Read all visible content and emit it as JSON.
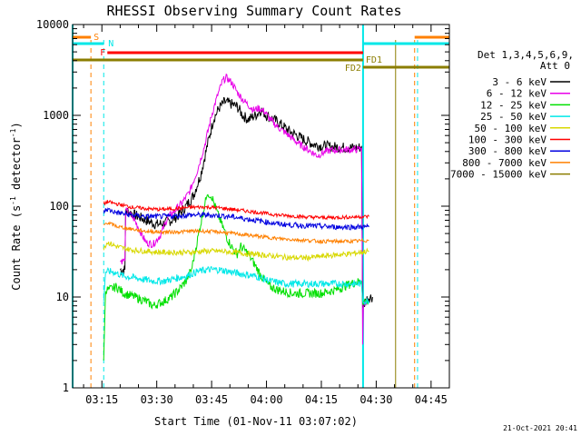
{
  "chart_data": {
    "type": "line",
    "title": "RHESSI Observing Summary Count Rates",
    "xlabel": "Start Time (01-Nov-11 03:07:02)",
    "ylabel_main": "Count Rate (s",
    "ylabel_sup": "-1",
    "ylabel_mid": " detector",
    "ylabel_tail": ")",
    "y_scale": "log",
    "ylim": [
      1,
      10000
    ],
    "x_unit": "minutes since 03:07:02",
    "xlim": [
      0,
      103
    ],
    "grid": false,
    "legend_position": "right",
    "legend_title": "Det 1,3,4,5,6,9,",
    "legend_subtitle": "Att 0",
    "x_ticks": [
      {
        "label": "03:15",
        "t": 8
      },
      {
        "label": "03:30",
        "t": 23
      },
      {
        "label": "03:45",
        "t": 38
      },
      {
        "label": "04:00",
        "t": 53
      },
      {
        "label": "04:15",
        "t": 68
      },
      {
        "label": "04:30",
        "t": 83
      },
      {
        "label": "04:45",
        "t": 98
      }
    ],
    "y_ticks": [
      {
        "label": "1",
        "v": 1
      },
      {
        "label": "10",
        "v": 10
      },
      {
        "label": "100",
        "v": 100
      },
      {
        "label": "1000",
        "v": 1000
      },
      {
        "label": "10000",
        "v": 10000
      }
    ],
    "series": [
      {
        "name": "3 - 6 keV",
        "color": "#000000",
        "noise": 0.06,
        "points": [
          [
            13,
            20
          ],
          [
            14.3,
            20
          ],
          [
            14.5,
            90
          ],
          [
            17,
            80
          ],
          [
            20,
            70
          ],
          [
            23,
            63
          ],
          [
            25,
            65
          ],
          [
            27,
            70
          ],
          [
            29,
            80
          ],
          [
            31,
            100
          ],
          [
            33,
            130
          ],
          [
            35,
            220
          ],
          [
            37,
            500
          ],
          [
            38.5,
            900
          ],
          [
            40,
            1200
          ],
          [
            41.5,
            1400
          ],
          [
            43,
            1350
          ],
          [
            45,
            1250
          ],
          [
            46.5,
            1000
          ],
          [
            48,
            900
          ],
          [
            50,
            1000
          ],
          [
            51.5,
            1150
          ],
          [
            53,
            1000
          ],
          [
            56,
            850
          ],
          [
            59,
            680
          ],
          [
            62,
            580
          ],
          [
            64,
            520
          ],
          [
            66,
            480
          ],
          [
            68,
            460
          ],
          [
            71,
            450
          ],
          [
            75,
            440
          ],
          [
            78,
            440
          ],
          [
            79,
            450
          ],
          [
            79.3,
            7
          ],
          [
            80,
            9
          ],
          [
            81,
            10
          ],
          [
            82,
            10
          ]
        ]
      },
      {
        "name": "6 - 12 keV",
        "color": "#e800e8",
        "noise": 0.04,
        "points": [
          [
            13,
            25
          ],
          [
            14.3,
            25
          ],
          [
            14.5,
            90
          ],
          [
            16.5,
            75
          ],
          [
            18,
            58
          ],
          [
            20,
            40
          ],
          [
            22,
            38
          ],
          [
            24,
            48
          ],
          [
            26,
            75
          ],
          [
            28,
            90
          ],
          [
            30,
            110
          ],
          [
            32,
            145
          ],
          [
            34,
            240
          ],
          [
            36,
            450
          ],
          [
            38,
            1000
          ],
          [
            39.5,
            1600
          ],
          [
            41,
            2400
          ],
          [
            42,
            2600
          ],
          [
            43.5,
            2300
          ],
          [
            45,
            1800
          ],
          [
            46.5,
            1500
          ],
          [
            48,
            1300
          ],
          [
            49.5,
            1150
          ],
          [
            51,
            1200
          ],
          [
            52.5,
            1100
          ],
          [
            54,
            900
          ],
          [
            56,
            750
          ],
          [
            58,
            650
          ],
          [
            60,
            560
          ],
          [
            62,
            480
          ],
          [
            64,
            430
          ],
          [
            66,
            380
          ],
          [
            67,
            360
          ],
          [
            68,
            380
          ],
          [
            70,
            410
          ],
          [
            74,
            420
          ],
          [
            78,
            420
          ],
          [
            79,
            440
          ],
          [
            79.3,
            3
          ],
          [
            79.5,
            8
          ],
          [
            80.5,
            9
          ]
        ]
      },
      {
        "name": "12 - 25 keV",
        "color": "#00e000",
        "noise": 0.05,
        "points": [
          [
            8.5,
            2
          ],
          [
            9,
            12
          ],
          [
            10,
            12
          ],
          [
            12,
            13
          ],
          [
            14,
            11
          ],
          [
            17,
            10
          ],
          [
            20,
            9
          ],
          [
            22,
            8
          ],
          [
            25,
            9
          ],
          [
            27,
            10
          ],
          [
            29,
            12
          ],
          [
            31,
            15
          ],
          [
            32.5,
            20
          ],
          [
            34,
            40
          ],
          [
            35.5,
            80
          ],
          [
            36.5,
            120
          ],
          [
            37,
            140
          ],
          [
            38,
            130
          ],
          [
            39.5,
            85
          ],
          [
            41,
            60
          ],
          [
            42.5,
            42
          ],
          [
            44,
            33
          ],
          [
            45,
            30
          ],
          [
            46,
            36
          ],
          [
            48,
            30
          ],
          [
            50,
            22
          ],
          [
            52,
            16
          ],
          [
            54,
            13
          ],
          [
            56,
            12
          ],
          [
            60,
            11
          ],
          [
            64,
            11
          ],
          [
            68,
            11
          ],
          [
            72,
            12
          ],
          [
            76,
            14
          ],
          [
            79,
            15
          ],
          [
            79.3,
            9
          ],
          [
            81,
            9
          ]
        ]
      },
      {
        "name": "25 - 50 keV",
        "color": "#00e8e8",
        "noise": 0.04,
        "points": [
          [
            8.5,
            9
          ],
          [
            9,
            19
          ],
          [
            11,
            19
          ],
          [
            14,
            17
          ],
          [
            18,
            16
          ],
          [
            22,
            15
          ],
          [
            25,
            15
          ],
          [
            28,
            16
          ],
          [
            31,
            17
          ],
          [
            34,
            19
          ],
          [
            37,
            20
          ],
          [
            40,
            20
          ],
          [
            43,
            19
          ],
          [
            46,
            18
          ],
          [
            50,
            17
          ],
          [
            54,
            15
          ],
          [
            58,
            14
          ],
          [
            62,
            14
          ],
          [
            66,
            14
          ],
          [
            70,
            14
          ],
          [
            74,
            14
          ],
          [
            78,
            14
          ],
          [
            79,
            14
          ],
          [
            79.3,
            9
          ],
          [
            81,
            9
          ]
        ]
      },
      {
        "name": "50 - 100 keV",
        "color": "#d8d800",
        "noise": 0.03,
        "points": [
          [
            8.5,
            35
          ],
          [
            9.5,
            40
          ],
          [
            12,
            36
          ],
          [
            16,
            33
          ],
          [
            20,
            32
          ],
          [
            24,
            31
          ],
          [
            28,
            31
          ],
          [
            32,
            31
          ],
          [
            36,
            32
          ],
          [
            40,
            32
          ],
          [
            44,
            31
          ],
          [
            48,
            30
          ],
          [
            52,
            29
          ],
          [
            56,
            28
          ],
          [
            60,
            27
          ],
          [
            64,
            27
          ],
          [
            68,
            28
          ],
          [
            72,
            29
          ],
          [
            76,
            30
          ],
          [
            81,
            32
          ]
        ]
      },
      {
        "name": "100 - 300 keV",
        "color": "#ff0000",
        "noise": 0.02,
        "points": [
          [
            8.5,
            105
          ],
          [
            9.5,
            112
          ],
          [
            12,
            106
          ],
          [
            16,
            98
          ],
          [
            20,
            94
          ],
          [
            24,
            92
          ],
          [
            28,
            94
          ],
          [
            32,
            97
          ],
          [
            36,
            98
          ],
          [
            40,
            96
          ],
          [
            44,
            92
          ],
          [
            48,
            88
          ],
          [
            52,
            84
          ],
          [
            56,
            80
          ],
          [
            60,
            78
          ],
          [
            64,
            76
          ],
          [
            68,
            75
          ],
          [
            72,
            75
          ],
          [
            76,
            76
          ],
          [
            81,
            77
          ]
        ]
      },
      {
        "name": "300 - 800 keV",
        "color": "#0000e0",
        "noise": 0.03,
        "points": [
          [
            8.5,
            88
          ],
          [
            9.5,
            92
          ],
          [
            12,
            85
          ],
          [
            16,
            80
          ],
          [
            20,
            77
          ],
          [
            24,
            77
          ],
          [
            28,
            78
          ],
          [
            32,
            80
          ],
          [
            36,
            80
          ],
          [
            40,
            79
          ],
          [
            44,
            76
          ],
          [
            48,
            72
          ],
          [
            52,
            68
          ],
          [
            56,
            64
          ],
          [
            60,
            62
          ],
          [
            64,
            61
          ],
          [
            68,
            60
          ],
          [
            72,
            59
          ],
          [
            76,
            59
          ],
          [
            81,
            59
          ]
        ]
      },
      {
        "name": "800 - 7000 keV",
        "color": "#ff8000",
        "noise": 0.02,
        "points": [
          [
            8.5,
            62
          ],
          [
            9.5,
            66
          ],
          [
            12,
            60
          ],
          [
            16,
            56
          ],
          [
            20,
            53
          ],
          [
            24,
            52
          ],
          [
            28,
            52
          ],
          [
            32,
            53
          ],
          [
            36,
            53
          ],
          [
            40,
            52
          ],
          [
            44,
            50
          ],
          [
            48,
            48
          ],
          [
            52,
            46
          ],
          [
            56,
            44
          ],
          [
            60,
            43
          ],
          [
            64,
            42
          ],
          [
            68,
            41
          ],
          [
            72,
            41
          ],
          [
            76,
            41
          ],
          [
            81,
            42
          ]
        ]
      },
      {
        "name": "7000 - 15000 keV",
        "color": "#8b7d00",
        "noise": 0,
        "points": []
      }
    ],
    "flags": {
      "S": {
        "label": "S",
        "color": "#ff8000"
      },
      "N": {
        "label": "N",
        "color": "#00e8e8"
      },
      "F": {
        "label": "F",
        "color": "#ff0000"
      },
      "FD1": {
        "label": "FD1",
        "color": "#8b7d00"
      },
      "FD2": {
        "label": "FD2",
        "color": "#8b7d00"
      }
    },
    "timestamp": "21-Oct-2021 20:41"
  }
}
